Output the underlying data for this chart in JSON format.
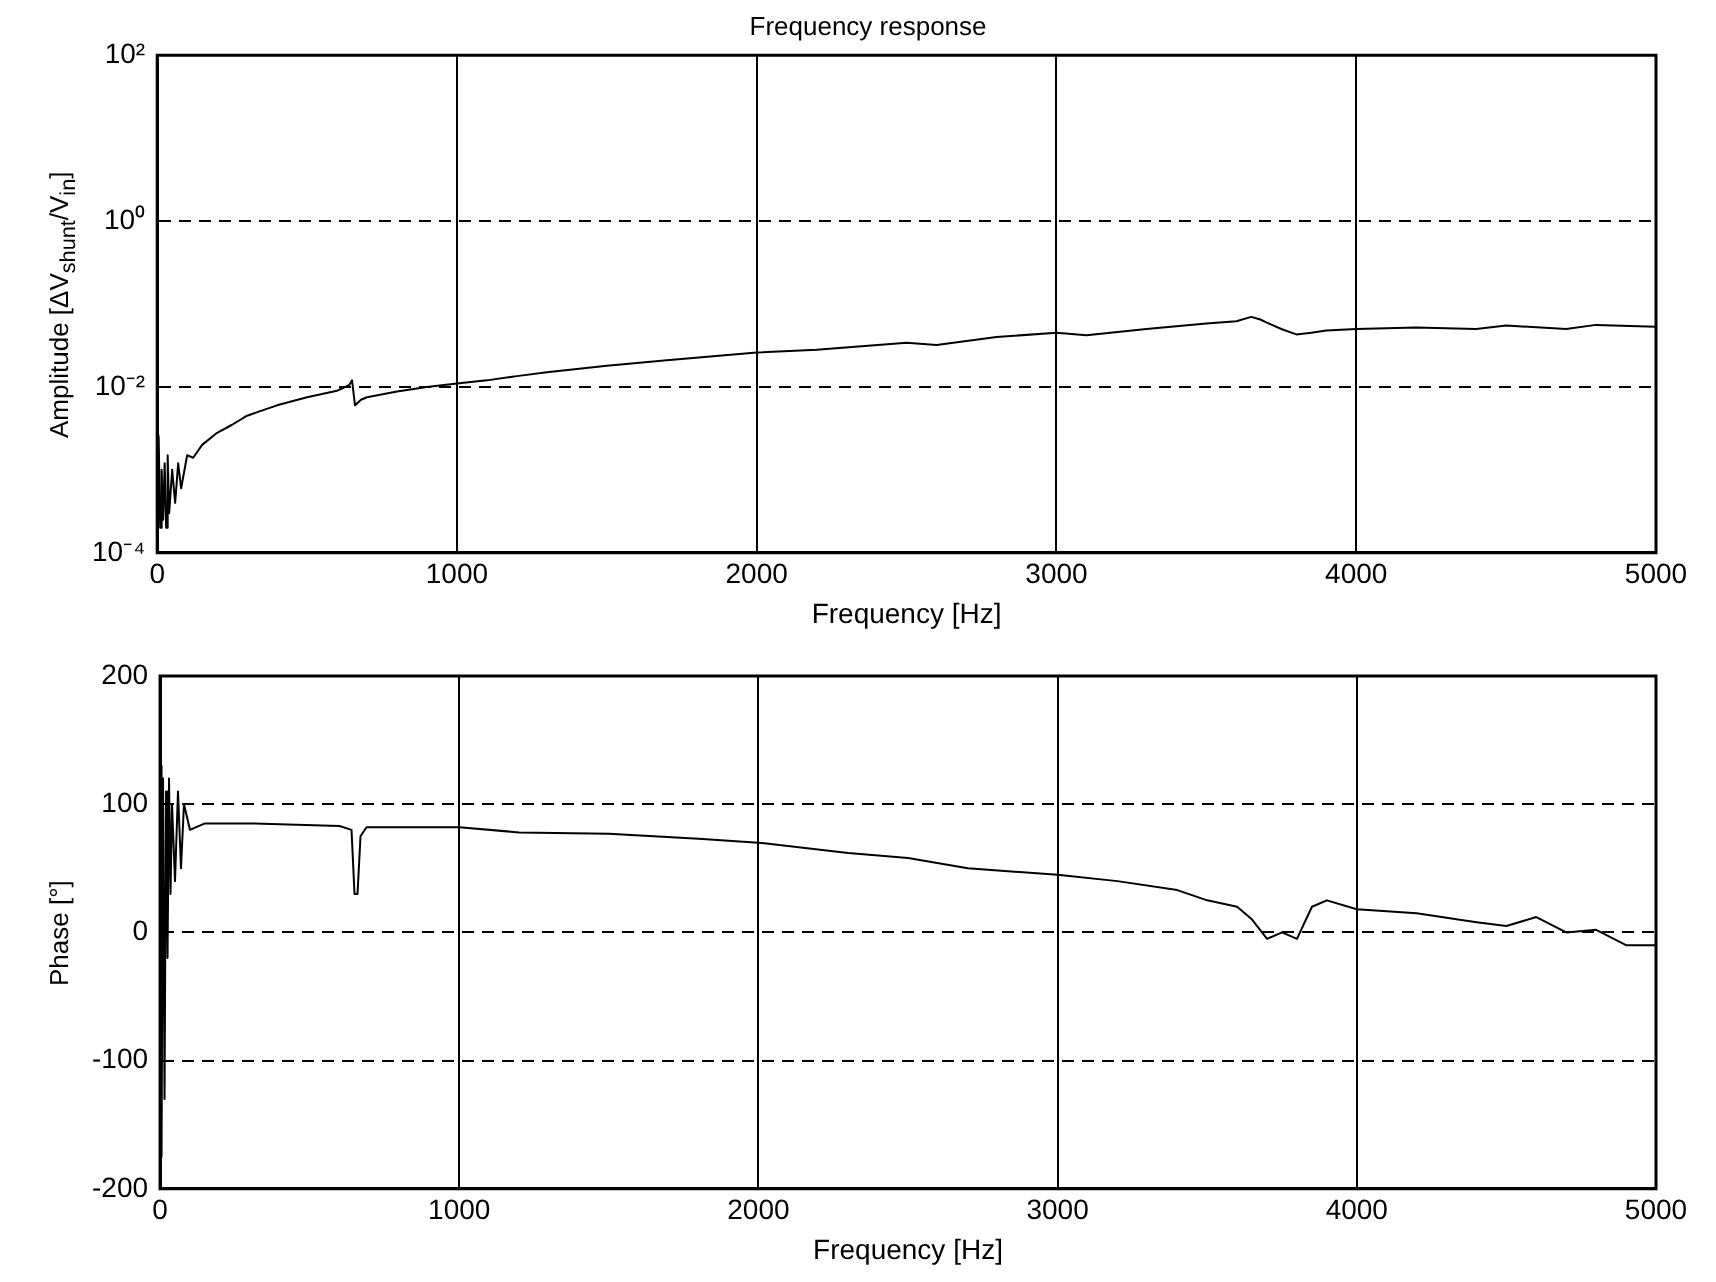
{
  "chart_data": [
    {
      "type": "line",
      "title": "Frequency response",
      "xlabel": "Frequency [Hz]",
      "ylabel": "Amplitude [ΔV$_{shunt}$/V$_{in}$]",
      "log": "y",
      "grid": true,
      "marker": "none",
      "line_style": "solid",
      "x": [
        0,
        5,
        10,
        15,
        20,
        25,
        30,
        35,
        40,
        50,
        60,
        70,
        80,
        100,
        120,
        150,
        200,
        250,
        300,
        400,
        500,
        600,
        640,
        650,
        660,
        680,
        700,
        800,
        900,
        1000,
        1100,
        1200,
        1300,
        1500,
        1700,
        2000,
        2200,
        2500,
        2600,
        2800,
        3000,
        3100,
        3300,
        3500,
        3600,
        3650,
        3680,
        3700,
        3750,
        3800,
        3850,
        3900,
        4000,
        4200,
        4400,
        4500,
        4700,
        4800,
        5000
      ],
      "xlim": [
        0,
        5000
      ],
      "xticks": [
        0,
        1000,
        2000,
        3000,
        4000,
        5000
      ],
      "series": [
        {
          "color": "#000000",
          "values": [
            0.003,
            0.0025,
            0.0002,
            0.001,
            0.00025,
            0.0012,
            0.0002,
            0.0015,
            0.0003,
            0.001,
            0.0004,
            0.0012,
            0.0006,
            0.0015,
            0.0014,
            0.002,
            0.0028,
            0.0035,
            0.0045,
            0.006,
            0.0075,
            0.009,
            0.0105,
            0.012,
            0.006,
            0.007,
            0.0075,
            0.0088,
            0.01,
            0.011,
            0.012,
            0.0135,
            0.015,
            0.018,
            0.021,
            0.026,
            0.028,
            0.034,
            0.032,
            0.04,
            0.045,
            0.042,
            0.05,
            0.058,
            0.062,
            0.07,
            0.065,
            0.06,
            0.05,
            0.043,
            0.045,
            0.048,
            0.05,
            0.052,
            0.05,
            0.055,
            0.05,
            0.056,
            0.053
          ]
        }
      ],
      "ylim": [
        0.0001,
        100
      ],
      "yticks": [
        {
          "value": 0.0001,
          "label": "10⁻⁴"
        },
        {
          "value": 0.01,
          "label": "10⁻²"
        },
        {
          "value": 1,
          "label": "10⁰"
        },
        {
          "value": 100,
          "label": "10²"
        }
      ]
    },
    {
      "type": "line",
      "xlabel": "Frequency [Hz]",
      "ylabel": "Phase [°]",
      "grid": true,
      "marker": "none",
      "line_style": "solid",
      "x": [
        0,
        5,
        10,
        15,
        20,
        25,
        30,
        35,
        40,
        50,
        60,
        70,
        80,
        100,
        150,
        300,
        600,
        640,
        650,
        660,
        670,
        690,
        700,
        1000,
        1200,
        1500,
        1800,
        2000,
        2300,
        2500,
        2700,
        3000,
        3200,
        3400,
        3500,
        3600,
        3650,
        3700,
        3750,
        3800,
        3850,
        3900,
        4000,
        4200,
        4400,
        4500,
        4600,
        4700,
        4800,
        4900,
        5000
      ],
      "xlim": [
        0,
        5000
      ],
      "xticks": [
        0,
        1000,
        2000,
        3000,
        4000,
        5000
      ],
      "series": [
        {
          "color": "#000000",
          "values": [
            130,
            -175,
            120,
            -130,
            110,
            -20,
            120,
            30,
            100,
            40,
            110,
            50,
            100,
            80,
            85,
            85,
            83,
            80,
            30,
            30,
            75,
            82,
            82,
            82,
            78,
            77,
            73,
            70,
            62,
            58,
            50,
            45,
            40,
            33,
            25,
            20,
            10,
            -5,
            0,
            -5,
            20,
            25,
            18,
            15,
            8,
            5,
            12,
            0,
            2,
            -10,
            -10
          ]
        }
      ],
      "ylim": [
        -200,
        200
      ],
      "yticks": [
        -200,
        -100,
        0,
        100,
        200
      ]
    }
  ]
}
